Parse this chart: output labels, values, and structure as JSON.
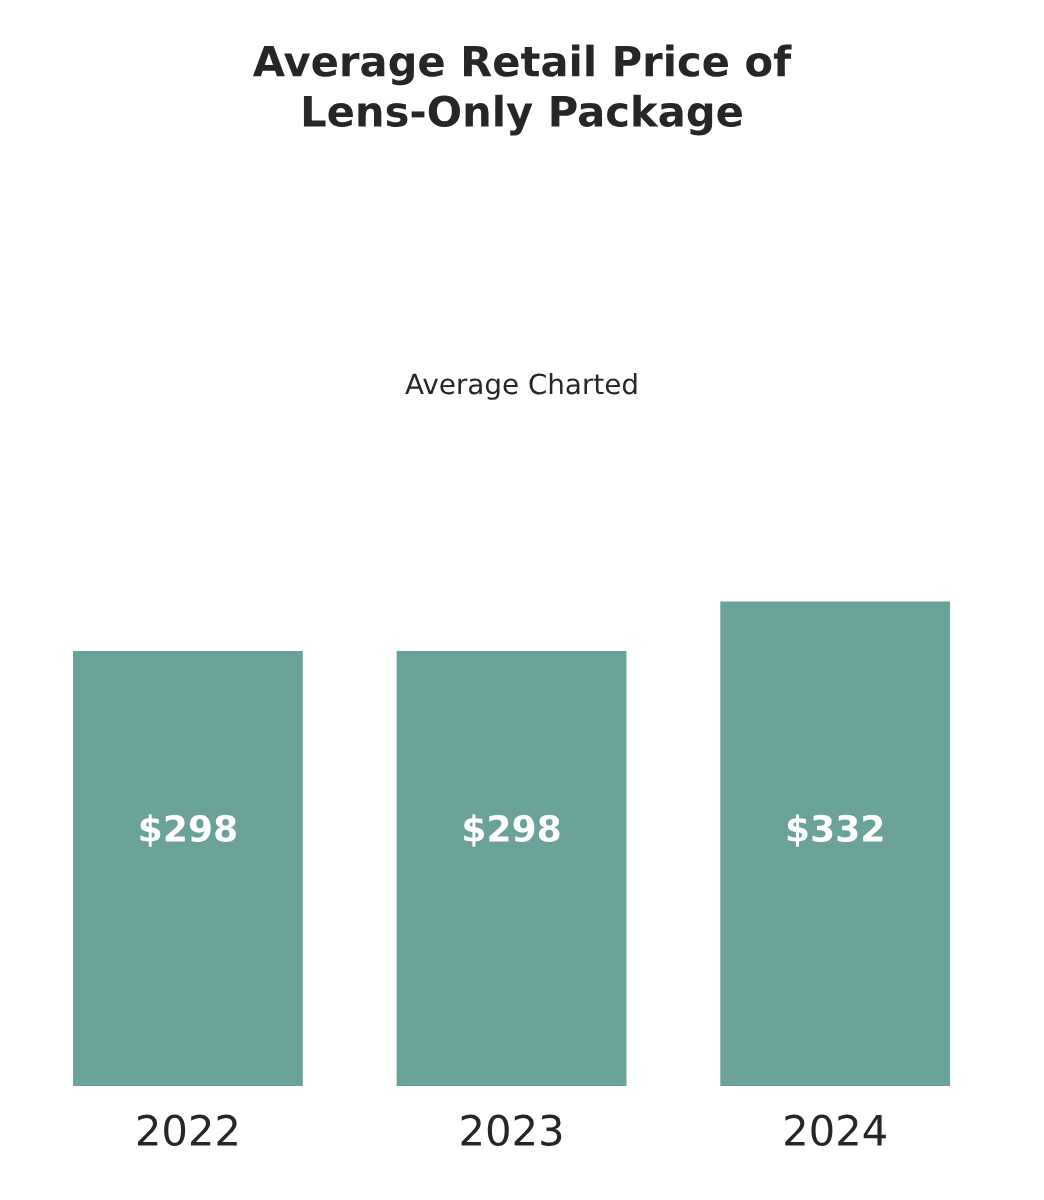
{
  "chart_data": {
    "type": "bar",
    "title": "Average Retail Price of\nLens-Only Package",
    "subtitle": "Average Charted",
    "categories": [
      "2022",
      "2023",
      "2024"
    ],
    "values": [
      298,
      298,
      332
    ],
    "value_labels": [
      "$298",
      "$298",
      "$332"
    ],
    "color": "#6aa29a",
    "grid": false,
    "legend": false
  }
}
